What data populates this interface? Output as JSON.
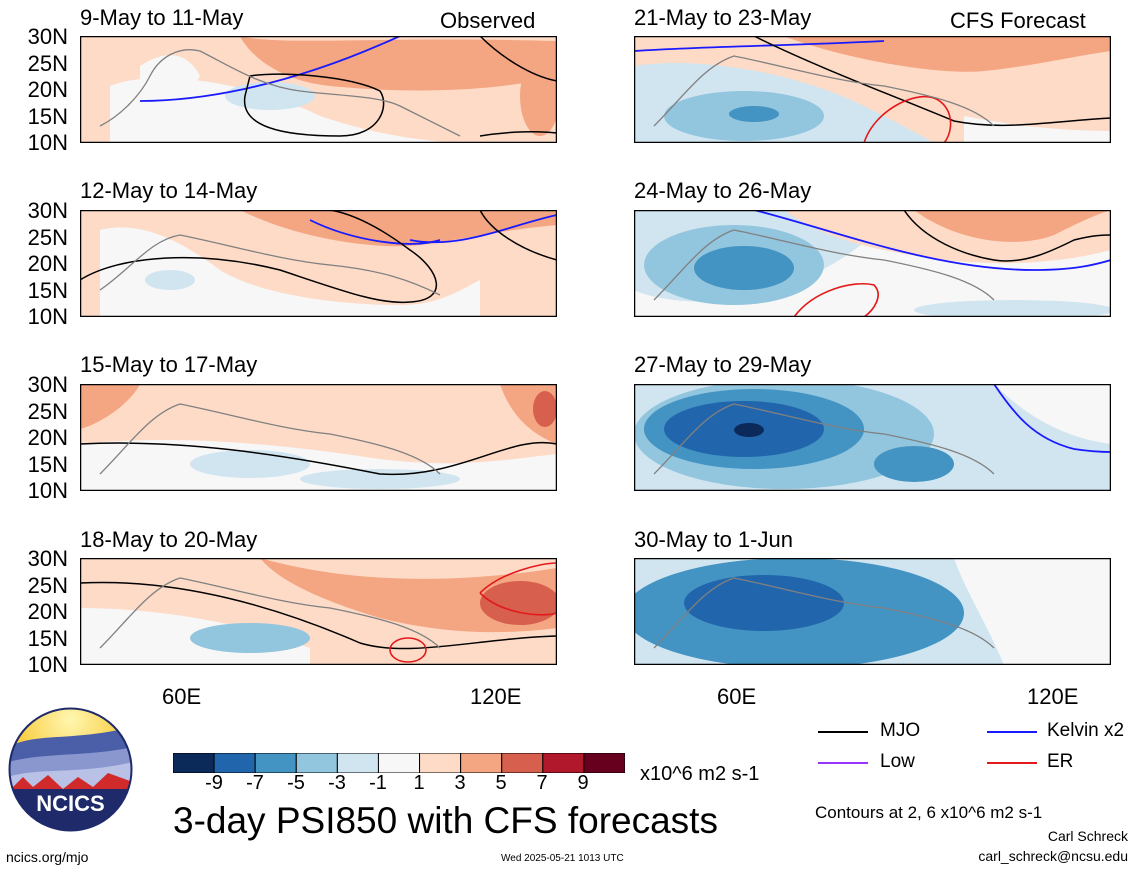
{
  "left_column": {
    "tag": "Observed",
    "panels": [
      {
        "title": "9-May to 11-May"
      },
      {
        "title": "12-May to 14-May"
      },
      {
        "title": "15-May to 17-May"
      },
      {
        "title": "18-May to 20-May"
      }
    ]
  },
  "right_column": {
    "tag": "CFS Forecast",
    "panels": [
      {
        "title": "21-May to 23-May"
      },
      {
        "title": "24-May to 26-May"
      },
      {
        "title": "27-May to 29-May"
      },
      {
        "title": "30-May to 1-Jun"
      }
    ]
  },
  "lat_labels": [
    "30N",
    "25N",
    "20N",
    "15N",
    "10N"
  ],
  "lon_labels": [
    "60E",
    "120E"
  ],
  "colorbar": {
    "labels": [
      "-9",
      "-7",
      "-5",
      "-3",
      "-1",
      "1",
      "3",
      "5",
      "7",
      "9"
    ],
    "colors": [
      "#0b2a5a",
      "#2166ac",
      "#4393c3",
      "#92c5de",
      "#d1e5f0",
      "#f7f7f7",
      "#fddbc7",
      "#f4a582",
      "#d6604d",
      "#b2182b",
      "#67001f"
    ],
    "units": "x10^6 m2 s-1"
  },
  "legend": {
    "items": [
      {
        "label": "MJO",
        "color": "#000000"
      },
      {
        "label": "Kelvin x2",
        "color": "#1a1aff"
      },
      {
        "label": "Low",
        "color": "#9933ff"
      },
      {
        "label": "ER",
        "color": "#e31a1c"
      }
    ],
    "contours_note": "Contours at 2, 6 x10^6 m2 s-1"
  },
  "footer": {
    "main_title": "3-day PSI850 with CFS forecasts",
    "logo_text": "NCICS",
    "site": "ncics.org/mjo",
    "timestamp": "Wed 2025-05-21 1013 UTC",
    "author": "Carl Schreck",
    "email": "carl_schreck@ncsu.edu"
  }
}
